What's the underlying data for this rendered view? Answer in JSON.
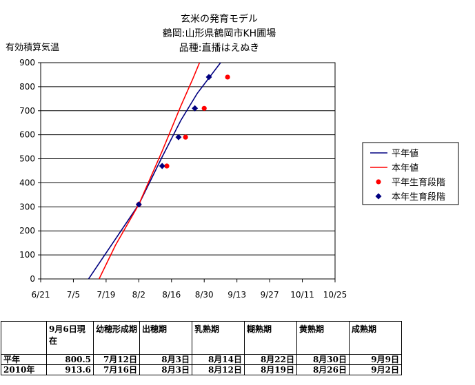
{
  "chart_data": {
    "type": "line",
    "title": [
      "玄米の発育モデル",
      "鶴岡:山形県鶴岡市KH圃場",
      "品種:直播はえぬき"
    ],
    "ylabel": "有効積算気温",
    "ylim": [
      0,
      900
    ],
    "yticks": [
      0,
      100,
      200,
      300,
      400,
      500,
      600,
      700,
      800,
      900
    ],
    "xlim": [
      0,
      126
    ],
    "xtick_values": [
      0,
      14,
      28,
      42,
      56,
      70,
      84,
      98,
      112,
      126
    ],
    "xtick_labels": [
      "6/21",
      "7/5",
      "7/19",
      "8/2",
      "8/16",
      "8/30",
      "9/13",
      "9/27",
      "10/11",
      "10/25"
    ],
    "grid": true,
    "legend_position": "right",
    "series": [
      {
        "name": "平年値",
        "kind": "line",
        "color": "#000080",
        "points": [
          [
            20.5,
            0
          ],
          [
            42,
            310
          ],
          [
            52,
            508
          ],
          [
            60,
            660
          ],
          [
            67,
            772
          ],
          [
            77,
            900
          ]
        ]
      },
      {
        "name": "本年値",
        "kind": "line",
        "color": "#ff0000",
        "points": [
          [
            25,
            0
          ],
          [
            32,
            140
          ],
          [
            42,
            310
          ],
          [
            52,
            532
          ],
          [
            60,
            720
          ],
          [
            65,
            830
          ],
          [
            68,
            900
          ]
        ]
      },
      {
        "name": "平年生育段階",
        "kind": "scatter",
        "color": "#ff0000",
        "points": [
          [
            42,
            310
          ],
          [
            54,
            470
          ],
          [
            62,
            590
          ],
          [
            70,
            710
          ],
          [
            80,
            840
          ]
        ]
      },
      {
        "name": "本年生育段階",
        "kind": "scatter",
        "color": "#000080",
        "points": [
          [
            42,
            310
          ],
          [
            52,
            470
          ],
          [
            59,
            590
          ],
          [
            66,
            710
          ],
          [
            72,
            840
          ]
        ]
      }
    ]
  },
  "table": {
    "headers": [
      "",
      "9月6日現在",
      "幼穂形成期",
      "出穂期",
      "乳熟期",
      "糊熟期",
      "黄熟期",
      "成熟期"
    ],
    "rows": [
      [
        "平年",
        "800.5",
        "7月12日",
        "8月3日",
        "8月14日",
        "8月22日",
        "8月30日",
        "9月9日"
      ],
      [
        "2010年",
        "913.6",
        "7月16日",
        "8月3日",
        "8月12日",
        "8月19日",
        "8月26日",
        "9月2日"
      ]
    ]
  }
}
